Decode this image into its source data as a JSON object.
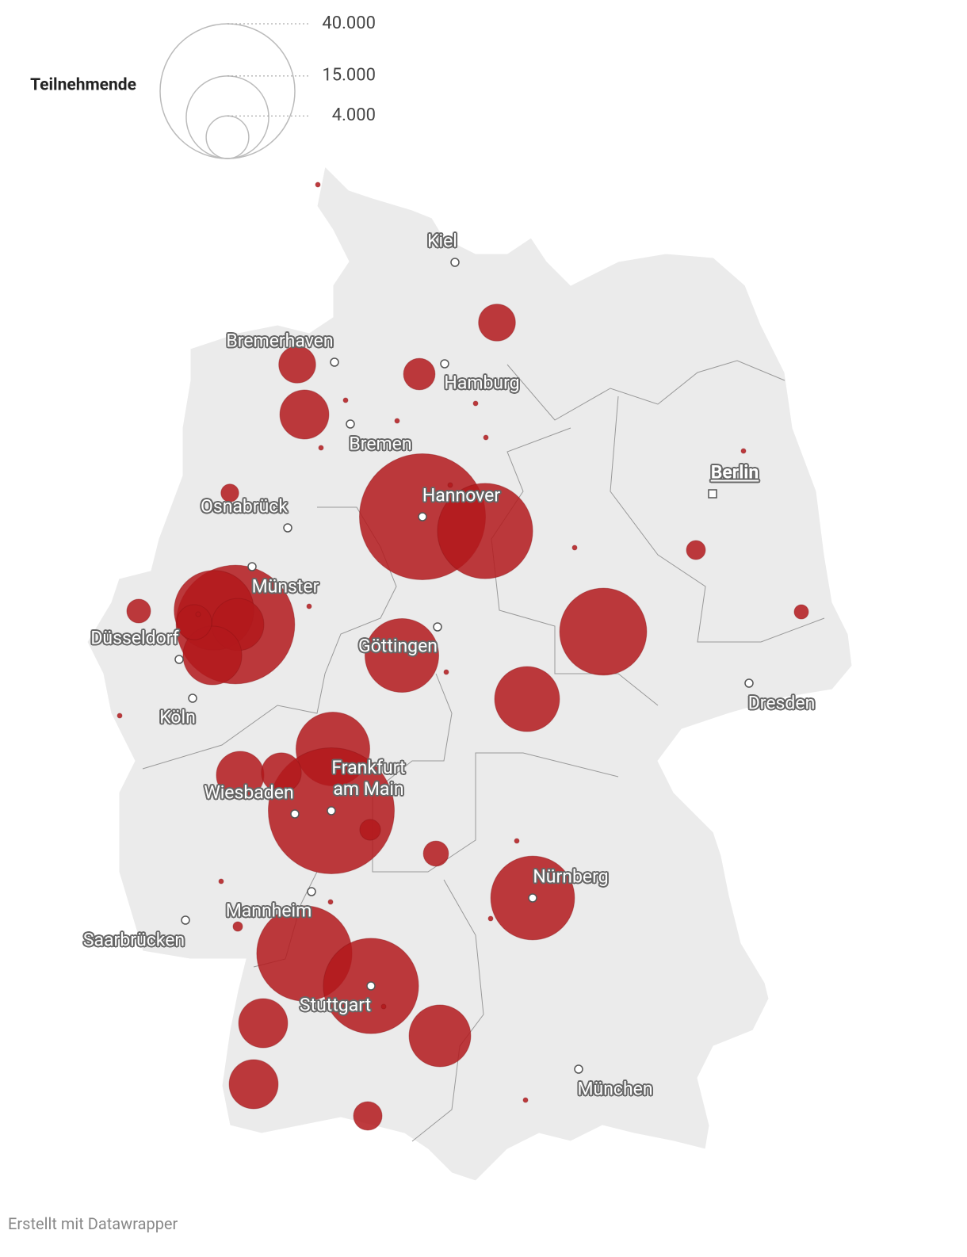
{
  "chart_data": {
    "type": "bubble-map",
    "size_legend": {
      "title": "Teilnehmende",
      "ticks": [
        {
          "value": 40000,
          "label": "40.000"
        },
        {
          "value": 15000,
          "label": "15.000"
        },
        {
          "value": 4000,
          "label": "4.000"
        }
      ]
    },
    "color": "#b3191c",
    "values": [
      3000,
      3000,
      2200,
      5300,
      35000,
      20000,
      700,
      31000,
      14000,
      6000,
      7600,
      2700,
      1250,
      12000,
      16700,
      9300,
      800,
      450,
      12000,
      35000,
      5000,
      3500,
      950,
      1400,
      15500,
      20000,
      20000,
      5300,
      8400,
      5300,
      1800,
      50,
      50,
      50,
      50,
      50,
      50,
      50,
      50,
      50,
      50,
      50,
      50,
      50,
      50,
      50,
      50,
      50,
      50,
      50,
      200
    ],
    "cities": [
      "Kiel",
      "Bremerhaven",
      "Hamburg",
      "Bremen",
      "Berlin",
      "Osnabrück",
      "Hannover",
      "Münster",
      "Düsseldorf",
      "Göttingen",
      "Dresden",
      "Köln",
      "Frankfurt am Main",
      "Wiesbaden",
      "Nürnberg",
      "Mannheim",
      "Saarbrücken",
      "Stuttgart",
      "München"
    ],
    "capital": "Berlin",
    "footer": "Erstellt mit Datawrapper"
  }
}
